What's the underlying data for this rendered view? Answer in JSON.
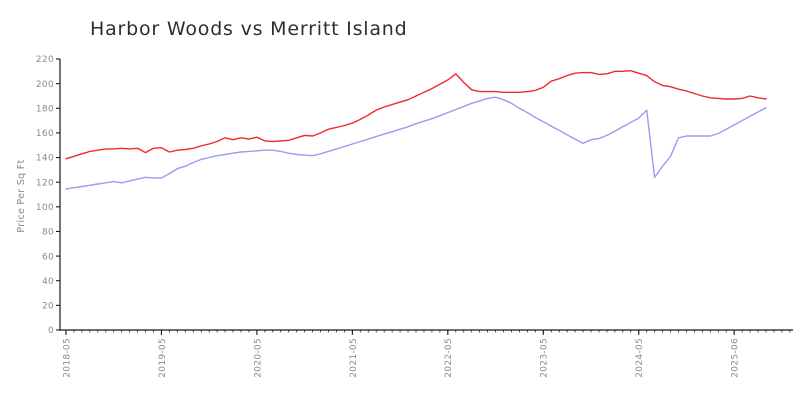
{
  "title": "Harbor Woods vs Merritt Island",
  "chart_data": {
    "type": "line",
    "title": "Harbor Woods vs Merritt Island",
    "xlabel": "",
    "ylabel": "Price Per Sq Ft",
    "ylim": [
      0,
      220
    ],
    "ytick_step": 20,
    "ytick_labels": [
      "0",
      "20",
      "40",
      "60",
      "80",
      "100",
      "120",
      "140",
      "160",
      "180",
      "200",
      "220"
    ],
    "grid": false,
    "legend_position": "none",
    "x_tick_labels": [
      "2018-05",
      "2019-05",
      "2020-05",
      "2021-05",
      "2022-05",
      "2023-05",
      "2024-05",
      "2025-06"
    ],
    "x_tick_indices": [
      0,
      12,
      24,
      36,
      48,
      60,
      72,
      84
    ],
    "x": [
      "2018-05",
      "2018-06",
      "2018-07",
      "2018-08",
      "2018-09",
      "2018-10",
      "2018-11",
      "2018-12",
      "2019-01",
      "2019-02",
      "2019-03",
      "2019-04",
      "2019-05",
      "2019-06",
      "2019-07",
      "2019-08",
      "2019-09",
      "2019-10",
      "2019-11",
      "2019-12",
      "2020-01",
      "2020-02",
      "2020-03",
      "2020-04",
      "2020-05",
      "2020-06",
      "2020-07",
      "2020-08",
      "2020-09",
      "2020-10",
      "2020-11",
      "2020-12",
      "2021-01",
      "2021-02",
      "2021-03",
      "2021-04",
      "2021-05",
      "2021-06",
      "2021-07",
      "2021-08",
      "2021-09",
      "2021-10",
      "2021-11",
      "2021-12",
      "2022-01",
      "2022-02",
      "2022-03",
      "2022-04",
      "2022-05",
      "2022-06",
      "2022-07",
      "2022-08",
      "2022-09",
      "2022-10",
      "2022-11",
      "2022-12",
      "2023-01",
      "2023-02",
      "2023-03",
      "2023-04",
      "2023-05",
      "2023-06",
      "2023-07",
      "2023-08",
      "2023-09",
      "2023-10",
      "2023-11",
      "2023-12",
      "2024-01",
      "2024-02",
      "2024-03",
      "2024-04",
      "2024-05",
      "2024-06",
      "2024-07",
      "2024-08",
      "2024-09",
      "2024-10",
      "2024-11",
      "2024-12",
      "2025-02",
      "2025-03",
      "2025-04",
      "2025-05",
      "2025-06",
      "2025-07",
      "2025-08",
      "2025-09",
      "2025-10"
    ],
    "series": [
      {
        "name": "Harbor Woods",
        "color": "#ee2c2c",
        "values": [
          139,
          141,
          143,
          145,
          146,
          147,
          147,
          147.5,
          147,
          147.5,
          144,
          147.5,
          148,
          144.5,
          146,
          146.5,
          147.5,
          149.5,
          151,
          153,
          156,
          154.5,
          156,
          155,
          156.5,
          153.5,
          153,
          153.5,
          154,
          156,
          158,
          157.5,
          160,
          163,
          164.5,
          166,
          168,
          171,
          174.5,
          178.5,
          181,
          183,
          185,
          187,
          190,
          193,
          196,
          199.5,
          203,
          208,
          201,
          195,
          193.5,
          193.5,
          193.5,
          193,
          193,
          193,
          193.5,
          194.5,
          197,
          202,
          204,
          206.5,
          208.5,
          209,
          209,
          207.5,
          208,
          210,
          210,
          210.5,
          208.5,
          206.5,
          201.5,
          198.5,
          197.5,
          195.5,
          194,
          192,
          190,
          188.5,
          188,
          187.5,
          187.5,
          188,
          190,
          188.5,
          187.5
        ]
      },
      {
        "name": "Merritt Island",
        "color": "#9b9bf0",
        "values": [
          114.5,
          115.5,
          116.5,
          117.5,
          118.5,
          119.5,
          120.5,
          119.5,
          121,
          122.5,
          124,
          123.5,
          123.5,
          127,
          131,
          133,
          136,
          138.5,
          140,
          141.5,
          142.5,
          143.5,
          144.5,
          145,
          145.5,
          146,
          146,
          145,
          143.5,
          142.5,
          142,
          141.5,
          143,
          145,
          147,
          149,
          151,
          153,
          155,
          157,
          159,
          161,
          163,
          165,
          167.5,
          169.5,
          171.5,
          174,
          176.5,
          179,
          181.5,
          184,
          186,
          188,
          189,
          187,
          184,
          180,
          176.5,
          172.5,
          169,
          165.5,
          162,
          158.5,
          155,
          151.5,
          154.5,
          155.5,
          158,
          161.5,
          165,
          168.5,
          172,
          178.5,
          124,
          133,
          141,
          156,
          157.5,
          157.5,
          157.5,
          157.5,
          159.5,
          163,
          166.5,
          170,
          173.5,
          177,
          180.5
        ]
      }
    ]
  }
}
